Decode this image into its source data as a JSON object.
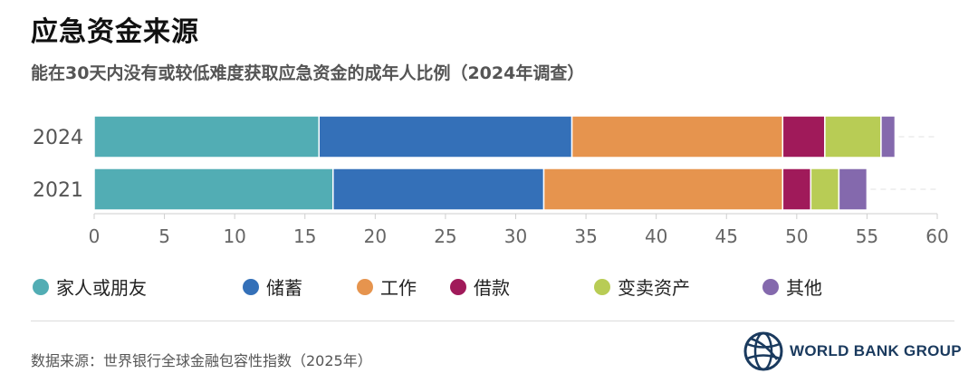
{
  "title": "应急资金来源",
  "subtitle": "能在30天内没有或较低难度获取应急资金的成年人比例（2024年调查）",
  "source": "数据来源：世界银行全球金融包容性指数（2025年）",
  "logo_text": "WORLD BANK GROUP",
  "chart_data": {
    "type": "bar",
    "orientation": "horizontal",
    "stacked": true,
    "categories": [
      "2024",
      "2021"
    ],
    "series": [
      {
        "name": "家人或朋友",
        "color": "#52adb4",
        "values": [
          16,
          17
        ]
      },
      {
        "name": "储蓄",
        "color": "#3470b8",
        "values": [
          18,
          15
        ]
      },
      {
        "name": "工作",
        "color": "#e6944e",
        "values": [
          15,
          17
        ]
      },
      {
        "name": "借款",
        "color": "#a01a5a",
        "values": [
          3,
          2
        ]
      },
      {
        "name": "变卖资产",
        "color": "#b8cc55",
        "values": [
          4,
          2
        ]
      },
      {
        "name": "其他",
        "color": "#8469ad",
        "values": [
          1,
          2
        ]
      }
    ],
    "xlim": [
      0,
      60
    ],
    "xticks": [
      "0",
      "5",
      "10",
      "15",
      "20",
      "25",
      "30",
      "35",
      "40",
      "45",
      "50",
      "55",
      "60"
    ],
    "legend_position": "bottom"
  }
}
